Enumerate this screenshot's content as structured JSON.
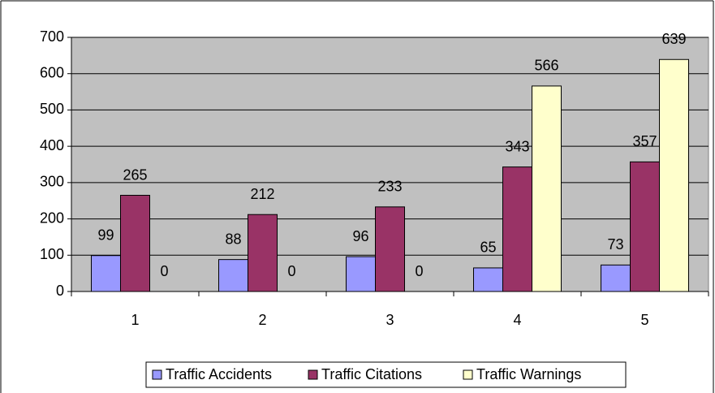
{
  "chart_data": {
    "type": "bar",
    "categories": [
      "1",
      "2",
      "3",
      "4",
      "5"
    ],
    "series": [
      {
        "name": "Traffic Accidents",
        "color": "#9999ff",
        "values": [
          99,
          88,
          96,
          65,
          73
        ]
      },
      {
        "name": "Traffic Citations",
        "color": "#993366",
        "values": [
          265,
          212,
          233,
          343,
          357
        ]
      },
      {
        "name": "Traffic Warnings",
        "color": "#ffffcc",
        "values": [
          0,
          0,
          0,
          566,
          639
        ]
      }
    ],
    "ylim": [
      0,
      700
    ],
    "yticks": [
      0,
      100,
      200,
      300,
      400,
      500,
      600,
      700
    ],
    "grid": true,
    "legend": "bottom",
    "plot_background": "#c0c0c0"
  }
}
